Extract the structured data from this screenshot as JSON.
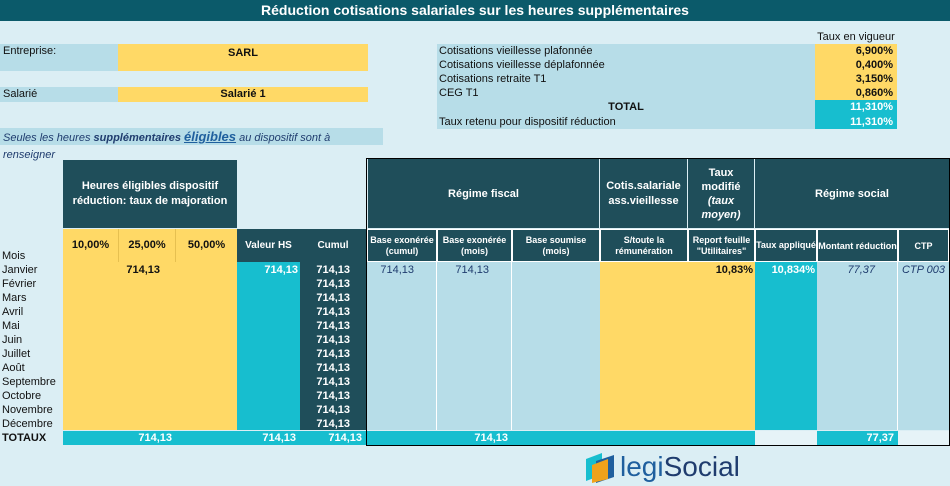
{
  "title": "Réduction cotisations salariales sur les heures supplémentaires",
  "entreprise": {
    "label": "Entreprise:",
    "value": "SARL"
  },
  "salarie": {
    "label": "Salarié",
    "value": "Salarié 1"
  },
  "note": {
    "pre": "Seules les heures",
    "mid1": "supplémentaires",
    "mid2": "éligibles",
    "post": "au dispositif sont à renseigner"
  },
  "rates": {
    "header": "Taux en vigueur",
    "rows": [
      {
        "label": "Cotisations vieillesse plafonnée",
        "value": "6,900%"
      },
      {
        "label": "Cotisations vieillesse déplafonnée",
        "value": "0,400%"
      },
      {
        "label": "Cotisations retraite T1",
        "value": "3,150%"
      },
      {
        "label": "CEG T1",
        "value": "0,860%"
      }
    ],
    "total_label": "TOTAL",
    "total_value": "11,310%",
    "retained_label": "Taux retenu pour dispositif réduction",
    "retained_value": "11,310%"
  },
  "headers": {
    "heures": "Heures éligibles dispositif réduction: taux de majoration",
    "regime_fiscal": "Régime fiscal",
    "cotis": "Cotis.salariale ass.vieillesse",
    "taux_modifie": "Taux modifié",
    "taux_moyen": "(taux moyen)",
    "regime_social": "Régime social",
    "mois": "Mois",
    "rate10": "10,00%",
    "rate25": "25,00%",
    "rate50": "50,00%",
    "valeur_hs": "Valeur HS",
    "cumul": "Cumul",
    "base_exo_cumul": "Base exonérée (cumul)",
    "base_exo_mois": "Base exonérée (mois)",
    "base_soumise": "Base soumise (mois)",
    "s_toute": "S/toute la rémunération",
    "report": "Report feuille \"Utilitaires\"",
    "taux_applique": "Taux appliqué",
    "montant": "Montant réduction",
    "ctp": "CTP"
  },
  "months": [
    "Janvier",
    "Février",
    "Mars",
    "Avril",
    "Mai",
    "Juin",
    "Juillet",
    "Août",
    "Septembre",
    "Octobre",
    "Novembre",
    "Décembre"
  ],
  "cumul_value": "714,13",
  "janvier": {
    "rate25": "714,13",
    "valeur_hs": "714,13",
    "base_exo_cumul": "714,13",
    "base_exo_mois": "714,13",
    "report": "10,83%",
    "taux_applique": "10,834%",
    "montant": "77,37",
    "ctp": "CTP 003"
  },
  "totaux": {
    "label": "TOTAUX",
    "heures": "714,13",
    "valeur_hs": "714,13",
    "cumul": "714,13",
    "base": "714,13",
    "montant": "77,37"
  },
  "logo": {
    "part1": "legi",
    "part2": "Social"
  }
}
